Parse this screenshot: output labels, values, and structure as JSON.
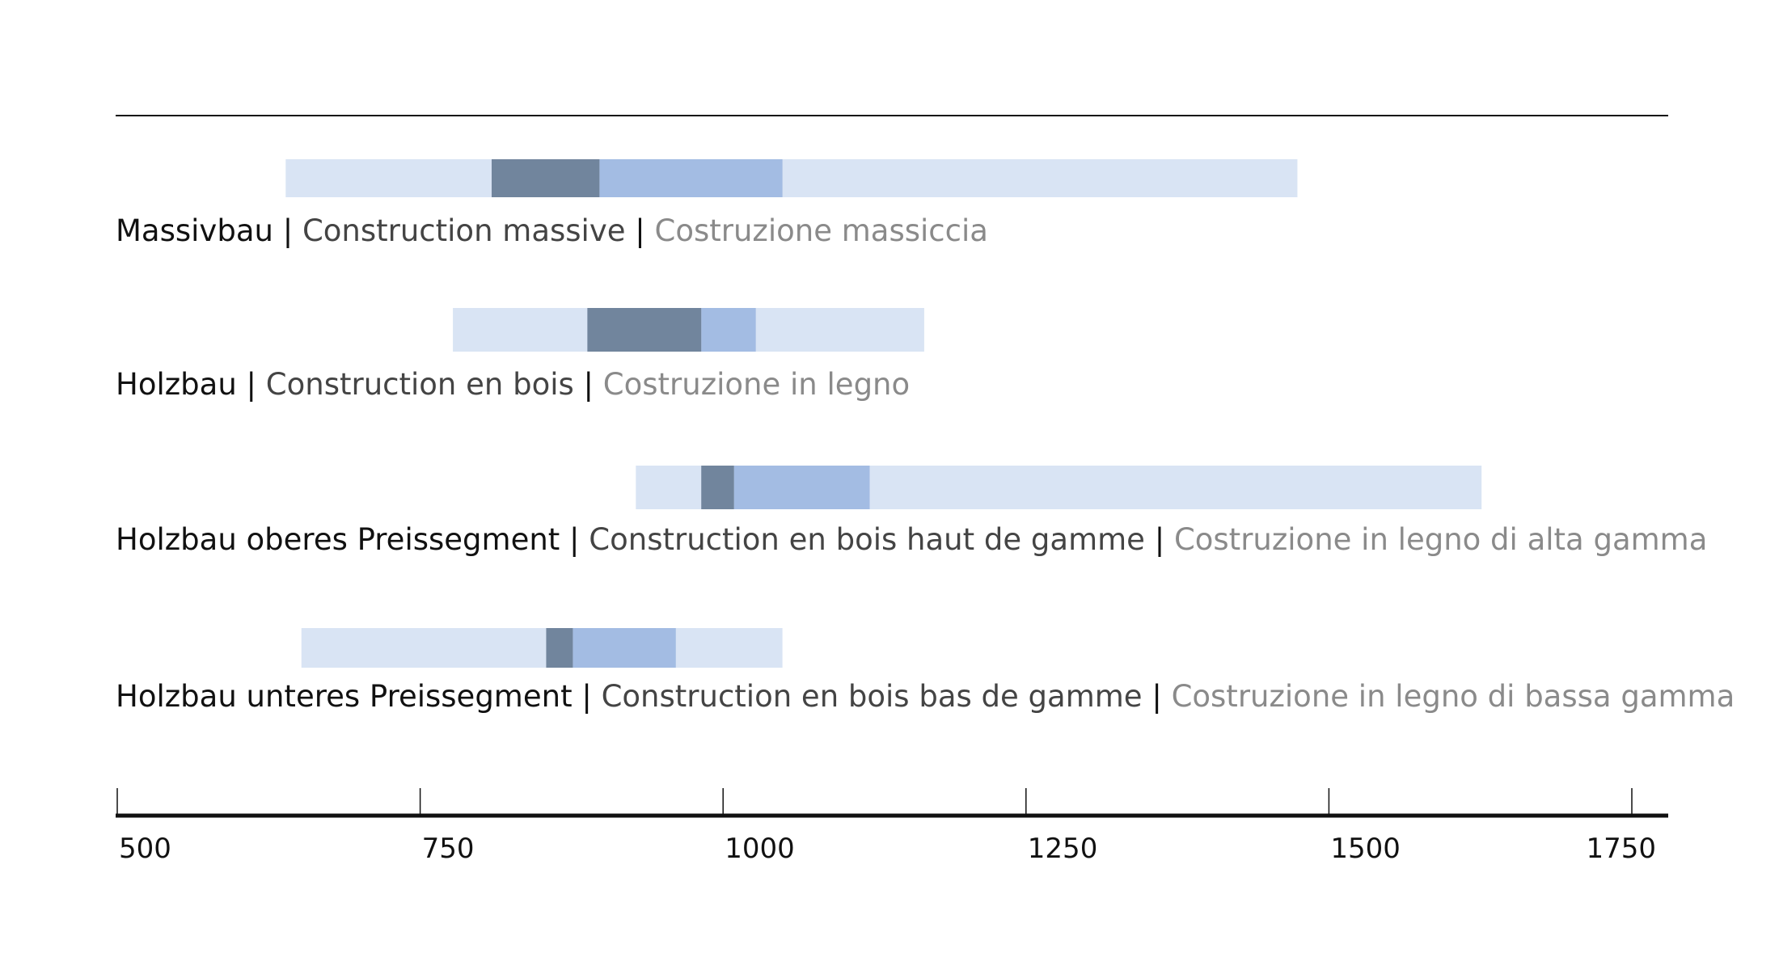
{
  "chart_data": {
    "type": "range-bar",
    "title": "",
    "xlabel": "",
    "ylabel": "",
    "xlim": [
      500,
      1750
    ],
    "x_ticks": [
      500,
      750,
      1000,
      1250,
      1500,
      1750
    ],
    "grid": false,
    "colors": {
      "outer_range": "#d9e4f4",
      "upper_middle_range": "#a3bce3",
      "lower_middle_range": "#71859d",
      "axis": "#111111",
      "top_rule": "#111111"
    },
    "series": [
      {
        "label_de": "Massivbau",
        "label_fr": "Construction massive",
        "label_it": "Costruzione massiccia",
        "min": 639,
        "lower": 809,
        "median": 898,
        "upper": 1049,
        "max": 1474
      },
      {
        "label_de": "Holzbau",
        "label_fr": "Construction en bois",
        "label_it": "Costruzione in legno",
        "min": 777,
        "lower": 888,
        "median": 982,
        "upper": 1027,
        "max": 1166
      },
      {
        "label_de": "Holzbau oberes Preissegment",
        "label_fr": "Construction en bois haut de gamme",
        "label_it": "Costruzione in legno di alta gamma",
        "min": 928,
        "lower": 982,
        "median": 1009,
        "upper": 1121,
        "max": 1626
      },
      {
        "label_de": "Holzbau unteres Preissegment",
        "label_fr": "Construction en bois bas de gamme",
        "label_it": "Costruzione in legno di bassa gamma",
        "min": 652,
        "lower": 854,
        "median": 876,
        "upper": 961,
        "max": 1049
      }
    ],
    "separator": " | "
  }
}
